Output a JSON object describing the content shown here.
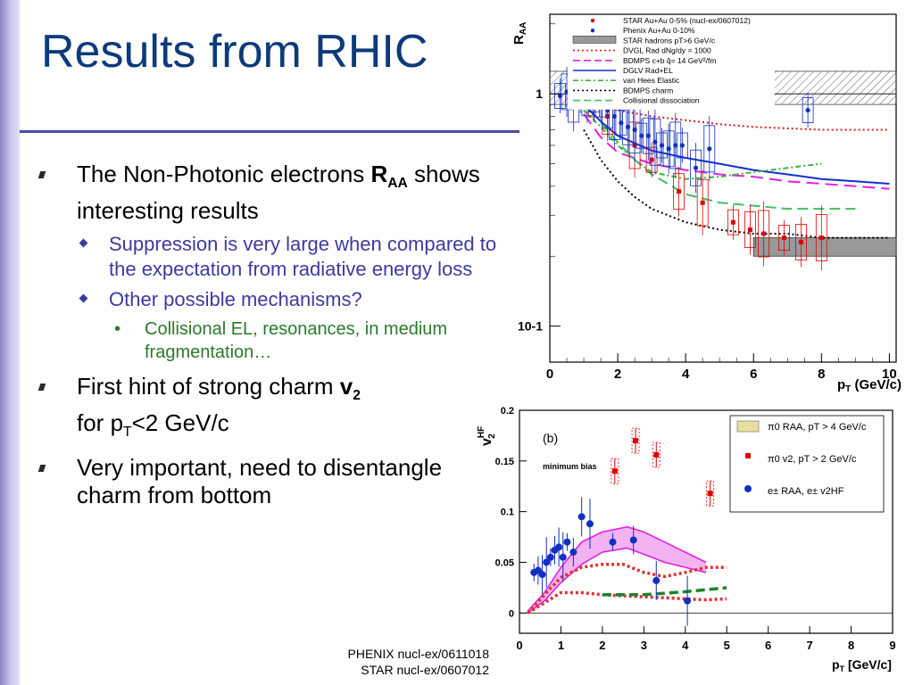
{
  "slide": {
    "title": "Results from RHIC",
    "bullets": [
      {
        "level": 1,
        "parts": [
          "The Non-Photonic electrons ",
          "R",
          "AA",
          " shows interesting results"
        ]
      },
      {
        "level": 2,
        "text": "Suppression is very large when compared to the expectation from radiative energy loss"
      },
      {
        "level": 2,
        "text": "Other possible mechanisms?"
      },
      {
        "level": 3,
        "text": "Collisional EL, resonances, in medium fragmentation…"
      },
      {
        "level": 1,
        "parts": [
          "First hint of strong charm ",
          "v",
          "2",
          "for p",
          "T",
          "<2 GeV/c"
        ]
      },
      {
        "level": 1,
        "text": "Very important, need to disentangle charm from bottom"
      }
    ],
    "references": [
      "PHENIX nucl-ex/0611018",
      "STAR nucl-ex/0607012"
    ],
    "colors": {
      "title": "#0d3a7a",
      "level2": "#3b3b9f",
      "level3": "#2a7a2a"
    }
  },
  "chart_data": [
    {
      "type": "scatter",
      "ylabel": "RAA",
      "xlabel": "pT (GeV/c)",
      "xlim": [
        0,
        10.2
      ],
      "ylim": [
        0.07,
        2.2
      ],
      "yscale": "log",
      "x_ticks": [
        "0",
        "2",
        "4",
        "6",
        "8",
        "10"
      ],
      "y_ticks": [
        "1",
        "10-1"
      ],
      "legend_position": "top-right",
      "legend": [
        "STAR Au+Au 0-5% (nucl-ex/0607012)",
        "Phenix Au+Au  0-10%",
        "STAR hadrons pT>6 GeV/c",
        "DVGL Rad dNg/dy = 1000",
        "BDMPS c+b q̂= 14 GeV²/fm",
        "DGLV Rad+EL",
        "van Hees Elastic",
        "BDMPS charm",
        "Collisional dissociation"
      ],
      "series": [
        {
          "name": "STAR Au+Au 0-5% (nucl-ex/0607012)",
          "color": "#e00000",
          "x": [
            1.3,
            1.7,
            2.5,
            3.0,
            3.8,
            4.5,
            5.4,
            5.9,
            6.3,
            6.9,
            7.4,
            8.0
          ],
          "y": [
            0.9,
            0.8,
            0.6,
            0.52,
            0.38,
            0.34,
            0.28,
            0.26,
            0.25,
            0.24,
            0.23,
            0.24
          ]
        },
        {
          "name": "Phenix Au+Au  0-10%",
          "color": "#1030c0",
          "x": [
            0.3,
            0.5,
            0.7,
            0.9,
            1.1,
            1.3,
            1.5,
            1.7,
            1.9,
            2.1,
            2.3,
            2.5,
            2.7,
            2.9,
            3.1,
            3.3,
            3.5,
            3.7,
            3.9,
            4.3,
            4.7,
            7.6
          ],
          "y": [
            0.98,
            1.02,
            0.95,
            0.98,
            0.96,
            1.05,
            0.9,
            0.85,
            0.8,
            0.75,
            0.72,
            0.7,
            0.66,
            0.66,
            0.62,
            0.6,
            0.58,
            0.6,
            0.6,
            0.48,
            0.58,
            0.85
          ]
        }
      ],
      "curves": [
        {
          "name": "DVGL Rad dNg/dy = 1000",
          "color": "#d02020",
          "dash": "2,3",
          "x": [
            1.0,
            2.0,
            3.0,
            4.0,
            5.0,
            6.0,
            7.0,
            8.0,
            9.0,
            10.0
          ],
          "y": [
            0.92,
            0.85,
            0.8,
            0.77,
            0.74,
            0.72,
            0.71,
            0.7,
            0.7,
            0.7
          ]
        },
        {
          "name": "BDMPS c+b q̂= 14 GeV²/fm",
          "color": "#e020e0",
          "dash": "14,7",
          "x": [
            1.0,
            1.5,
            2.0,
            3.0,
            4.0,
            5.0,
            6.0,
            7.0,
            8.0,
            9.0,
            10.0
          ],
          "y": [
            0.82,
            0.65,
            0.56,
            0.5,
            0.47,
            0.45,
            0.44,
            0.42,
            0.41,
            0.4,
            0.39
          ]
        },
        {
          "name": "DGLV Rad+EL",
          "color": "#1030d0",
          "dash": "",
          "x": [
            1.0,
            1.5,
            2.0,
            3.0,
            4.0,
            5.0,
            6.0,
            7.0,
            8.0,
            9.0,
            10.0
          ],
          "y": [
            0.9,
            0.76,
            0.66,
            0.57,
            0.53,
            0.5,
            0.47,
            0.45,
            0.43,
            0.42,
            0.41
          ]
        },
        {
          "name": "van Hees Elastic",
          "color": "#40b040",
          "dash": "6,3,2,3",
          "x": [
            1.0,
            1.5,
            2.0,
            2.5,
            3.0,
            4.0,
            5.0,
            6.0,
            7.0,
            8.0
          ],
          "y": [
            0.85,
            0.72,
            0.6,
            0.52,
            0.46,
            0.43,
            0.44,
            0.46,
            0.48,
            0.5
          ]
        },
        {
          "name": "BDMPS charm",
          "color": "#000000",
          "dash": "2,3",
          "x": [
            1.0,
            1.5,
            2.0,
            2.5,
            3.0,
            4.0,
            5.0,
            6.0,
            7.0,
            8.0,
            9.0,
            10.0
          ],
          "y": [
            0.7,
            0.52,
            0.42,
            0.36,
            0.32,
            0.28,
            0.26,
            0.25,
            0.25,
            0.24,
            0.24,
            0.24
          ]
        },
        {
          "name": "Collisional dissociation",
          "color": "#40c060",
          "dash": "12,6",
          "x": [
            1.5,
            2.0,
            2.5,
            3.0,
            4.0,
            5.0,
            6.0,
            7.0,
            8.0,
            9.0
          ],
          "y": [
            0.75,
            0.62,
            0.52,
            0.45,
            0.37,
            0.34,
            0.33,
            0.32,
            0.32,
            0.32
          ]
        }
      ],
      "bands": [
        {
          "name": "STAR hadrons pT>6 GeV/c",
          "x": [
            6.0,
            10.2
          ],
          "y": [
            0.2,
            0.24
          ],
          "color": "#999999"
        },
        {
          "name": "hatched normalization",
          "x": [
            0.0,
            10.2
          ],
          "y": [
            0.9,
            1.25
          ],
          "color": "#555555",
          "hatched": true
        }
      ]
    },
    {
      "type": "scatter",
      "panel_label": "(b)",
      "note": "minimum bias",
      "ylabel": "v2HF",
      "xlabel": "pT [GeV/c]",
      "xlim": [
        0,
        9
      ],
      "ylim": [
        -0.02,
        0.2
      ],
      "x_ticks": [
        "0",
        "1",
        "2",
        "3",
        "4",
        "5",
        "6",
        "7",
        "8",
        "9"
      ],
      "y_ticks": [
        "0",
        "0.05",
        "0.1",
        "0.15",
        "0.2"
      ],
      "legend_position": "top-right",
      "legend": [
        "π0 RAA, pT > 4 GeV/c",
        "π0 v2, pT > 2 GeV/c",
        "e± RAA, e± v2HF"
      ],
      "series": [
        {
          "name": "π0 v2, pT > 2 GeV/c",
          "color": "#e00000",
          "x": [
            2.3,
            2.8,
            3.3,
            4.6
          ],
          "y": [
            0.14,
            0.17,
            0.156,
            0.118
          ]
        },
        {
          "name": "e± RAA, e± v2HF",
          "color": "#1030c0",
          "x": [
            0.35,
            0.45,
            0.55,
            0.65,
            0.75,
            0.85,
            0.95,
            1.05,
            1.15,
            1.3,
            1.5,
            1.7,
            2.25,
            2.75,
            3.3,
            4.05
          ],
          "y": [
            0.04,
            0.042,
            0.038,
            0.05,
            0.055,
            0.062,
            0.065,
            0.055,
            0.07,
            0.06,
            0.095,
            0.088,
            0.07,
            0.072,
            0.032,
            0.012
          ]
        }
      ],
      "curves": [
        {
          "name": "theory upper",
          "color": "#e020e0",
          "dash": "",
          "x": [
            0.2,
            0.6,
            1.0,
            1.5,
            2.0,
            2.6,
            3.0,
            3.5,
            4.0,
            4.5
          ],
          "y": [
            0.002,
            0.02,
            0.045,
            0.07,
            0.08,
            0.085,
            0.08,
            0.07,
            0.06,
            0.05
          ]
        },
        {
          "name": "theory lower",
          "color": "#e020e0",
          "dash": "",
          "x": [
            0.2,
            0.6,
            1.0,
            1.5,
            2.0,
            2.6,
            3.0,
            3.5,
            4.0,
            4.5
          ],
          "y": [
            0.0,
            0.012,
            0.03,
            0.048,
            0.06,
            0.064,
            0.058,
            0.05,
            0.045,
            0.04
          ]
        },
        {
          "name": "dotted upper",
          "color": "#e03030",
          "dash": "3,3",
          "x": [
            0.2,
            0.6,
            1.0,
            1.5,
            2.0,
            2.5,
            3.0,
            3.5,
            4.0,
            4.5,
            5.0
          ],
          "y": [
            0.0,
            0.018,
            0.035,
            0.045,
            0.048,
            0.048,
            0.04,
            0.036,
            0.04,
            0.045,
            0.045
          ]
        },
        {
          "name": "dotted lower",
          "color": "#e03030",
          "dash": "3,3",
          "x": [
            0.2,
            0.6,
            1.0,
            1.5,
            2.0,
            2.5,
            3.0,
            3.5,
            4.0,
            4.5,
            5.0
          ],
          "y": [
            0.0,
            0.01,
            0.02,
            0.02,
            0.018,
            0.017,
            0.016,
            0.015,
            0.014,
            0.013,
            0.014
          ]
        },
        {
          "name": "green dashed",
          "color": "#208030",
          "dash": "10,5",
          "x": [
            2.0,
            3.0,
            4.0,
            5.0
          ],
          "y": [
            0.018,
            0.018,
            0.021,
            0.025
          ]
        }
      ]
    }
  ]
}
